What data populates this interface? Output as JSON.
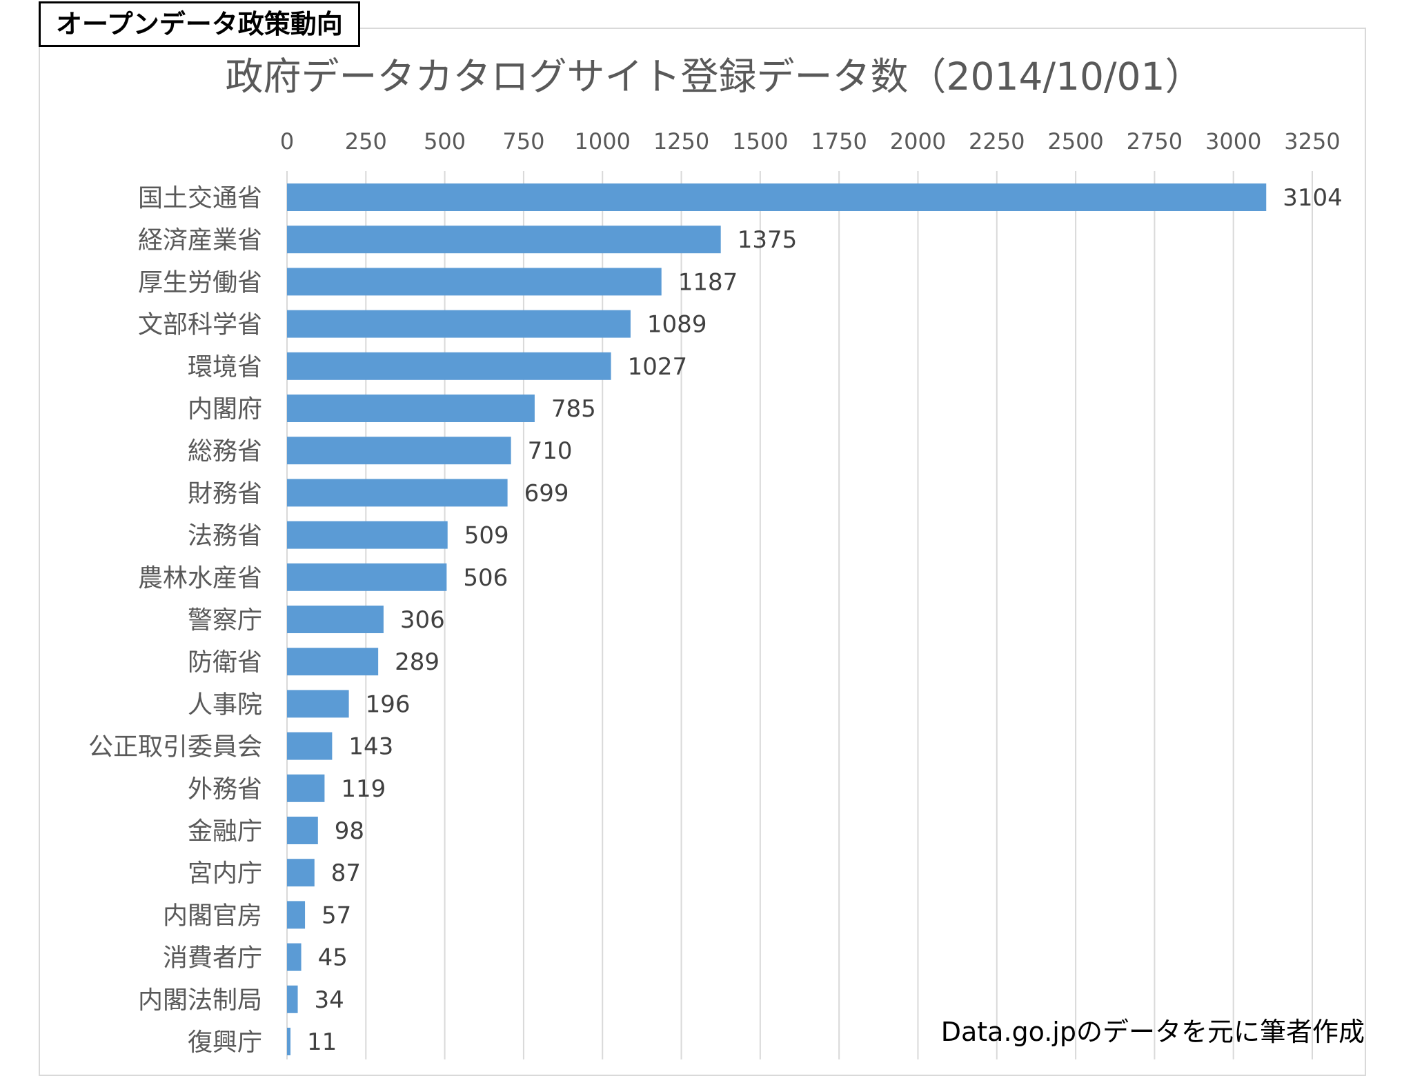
{
  "header": {
    "label": "オープンデータ政策動向"
  },
  "footer": {
    "source": "Data.go.jpのデータを元に筆者作成"
  },
  "chart_data": {
    "type": "bar",
    "orientation": "horizontal",
    "title": "政府データカタログサイト登録データ数（2014/10/01）",
    "xlabel": "",
    "ylabel": "",
    "xlim": [
      0,
      3250
    ],
    "ticks": [
      0,
      250,
      500,
      750,
      1000,
      1250,
      1500,
      1750,
      2000,
      2250,
      2500,
      2750,
      3000,
      3250
    ],
    "tick_position": "top",
    "grid": true,
    "legend": "none",
    "bar_color": "#5b9bd5",
    "categories": [
      "国土交通省",
      "経済産業省",
      "厚生労働省",
      "文部科学省",
      "環境省",
      "内閣府",
      "総務省",
      "財務省",
      "法務省",
      "農林水産省",
      "警察庁",
      "防衛省",
      "人事院",
      "公正取引委員会",
      "外務省",
      "金融庁",
      "宮内庁",
      "内閣官房",
      "消費者庁",
      "内閣法制局",
      "復興庁"
    ],
    "values": [
      3104,
      1375,
      1187,
      1089,
      1027,
      785,
      710,
      699,
      509,
      506,
      306,
      289,
      196,
      143,
      119,
      98,
      87,
      57,
      45,
      34,
      11
    ]
  }
}
